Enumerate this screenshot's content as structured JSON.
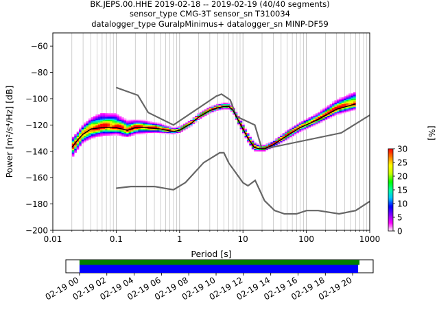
{
  "title_lines": [
    "BK.JEPS.00.HHE   2019-02-18 -- 2019-02-19  (40/40 segments)",
    "sensor_type CMG-3T sensor_sn T310034",
    "datalogger_type GuralpMinimus+ datalogger_sn MINP-DF59"
  ],
  "chart_data": [
    {
      "type": "heatmap",
      "subtype": "probabilistic-power-spectral-density",
      "xlabel": "Period [s]",
      "ylabel": "Power [m²/s⁴/Hz] [dB]",
      "x_scale": "log",
      "xlim": [
        0.01,
        1000
      ],
      "ylim": [
        -200,
        -50
      ],
      "x_ticks": [
        0.01,
        0.1,
        1,
        10,
        100,
        1000
      ],
      "x_tick_labels": [
        "0.01",
        "0.1",
        "1",
        "10",
        "100",
        "1000"
      ],
      "y_ticks": [
        -200,
        -180,
        -160,
        -140,
        -120,
        -100,
        -80,
        -60
      ],
      "y_tick_labels": [
        "−200",
        "−180",
        "−160",
        "−140",
        "−120",
        "−100",
        "−80",
        "−60"
      ],
      "grid": "vertical-log",
      "colorbar": {
        "label": "[%]",
        "range": [
          0,
          30
        ],
        "ticks": [
          0,
          5,
          10,
          15,
          20,
          25,
          30
        ],
        "tick_labels": [
          "0",
          "5",
          "10",
          "15",
          "20",
          "25",
          "30"
        ],
        "colormap": [
          "#ffffff",
          "#ff00ff",
          "#8000ff",
          "#0000ff",
          "#00c0ff",
          "#00ffa0",
          "#00ff00",
          "#c8ff00",
          "#ffff00",
          "#ff8000",
          "#ff0000"
        ]
      },
      "noise_model_high": {
        "color": "#666666",
        "period": [
          0.1,
          0.22,
          0.32,
          0.8,
          3.8,
          4.6,
          6.3,
          7.9,
          15.4,
          20,
          354.8,
          1000
        ],
        "power": [
          -91.5,
          -97.4,
          -110.5,
          -120,
          -98,
          -96.5,
          -101,
          -113.5,
          -120,
          -138.5,
          -126,
          -112.5
        ]
      },
      "noise_model_low": {
        "color": "#666666",
        "period": [
          0.1,
          0.17,
          0.4,
          0.8,
          1.24,
          2.4,
          4.3,
          5,
          6,
          10,
          12,
          15.6,
          21.9,
          31.6,
          45,
          70,
          101,
          154,
          328,
          600,
          1000
        ],
        "power": [
          -168,
          -166.7,
          -166.7,
          -169.2,
          -163.7,
          -148.6,
          -141.1,
          -141.1,
          -149,
          -163.8,
          -166.2,
          -162.1,
          -177.5,
          -185,
          -187.5,
          -187.5,
          -185,
          -185,
          -187.5,
          -185,
          -178
        ]
      },
      "mode_curve": {
        "color": "#000000",
        "period": [
          0.02,
          0.025,
          0.03,
          0.04,
          0.06,
          0.1,
          0.15,
          0.2,
          0.3,
          0.5,
          0.8,
          1.0,
          1.5,
          2,
          3,
          4,
          5,
          6,
          7,
          9,
          12,
          15,
          18,
          22,
          30,
          50,
          80,
          150,
          300,
          600
        ],
        "power": [
          -137,
          -131,
          -127,
          -123,
          -122,
          -122,
          -124,
          -122,
          -122,
          -123,
          -125,
          -124,
          -119,
          -114,
          -109,
          -107,
          -106,
          -106,
          -109,
          -119,
          -130,
          -137,
          -138,
          -138,
          -135,
          -128,
          -122,
          -116,
          -108,
          -104
        ]
      },
      "pdf_spread_upper_db": [
        6,
        5,
        6,
        7,
        10,
        9,
        6,
        5,
        4,
        3,
        2,
        2,
        2,
        2,
        2,
        2,
        2,
        2,
        2,
        3,
        3,
        3,
        2,
        2,
        2,
        3,
        3,
        4,
        6,
        8
      ],
      "pdf_spread_lower_db": [
        8,
        7,
        6,
        7,
        6,
        5,
        5,
        5,
        4,
        3,
        2,
        2,
        2,
        2,
        2,
        2,
        2,
        2,
        2,
        3,
        3,
        3,
        2,
        2,
        2,
        3,
        3,
        3,
        4,
        4
      ]
    },
    {
      "type": "timeline",
      "x_tick_labels": [
        "02-19 00",
        "02-19 02",
        "02-19 04",
        "02-19 06",
        "02-19 08",
        "02-19 10",
        "02-19 12",
        "02-19 14",
        "02-19 16",
        "02-19 18",
        "02-19 20"
      ],
      "x_ticks_hours": [
        0,
        2,
        4,
        6,
        8,
        10,
        12,
        14,
        16,
        18,
        20
      ],
      "xlim_hours": [
        -1,
        21.5
      ],
      "bars": [
        {
          "color": "#008000",
          "start_hours": 0,
          "end_hours": 20.5
        },
        {
          "color": "#0000ff",
          "start_hours": 0,
          "end_hours": 20.4
        }
      ]
    }
  ]
}
